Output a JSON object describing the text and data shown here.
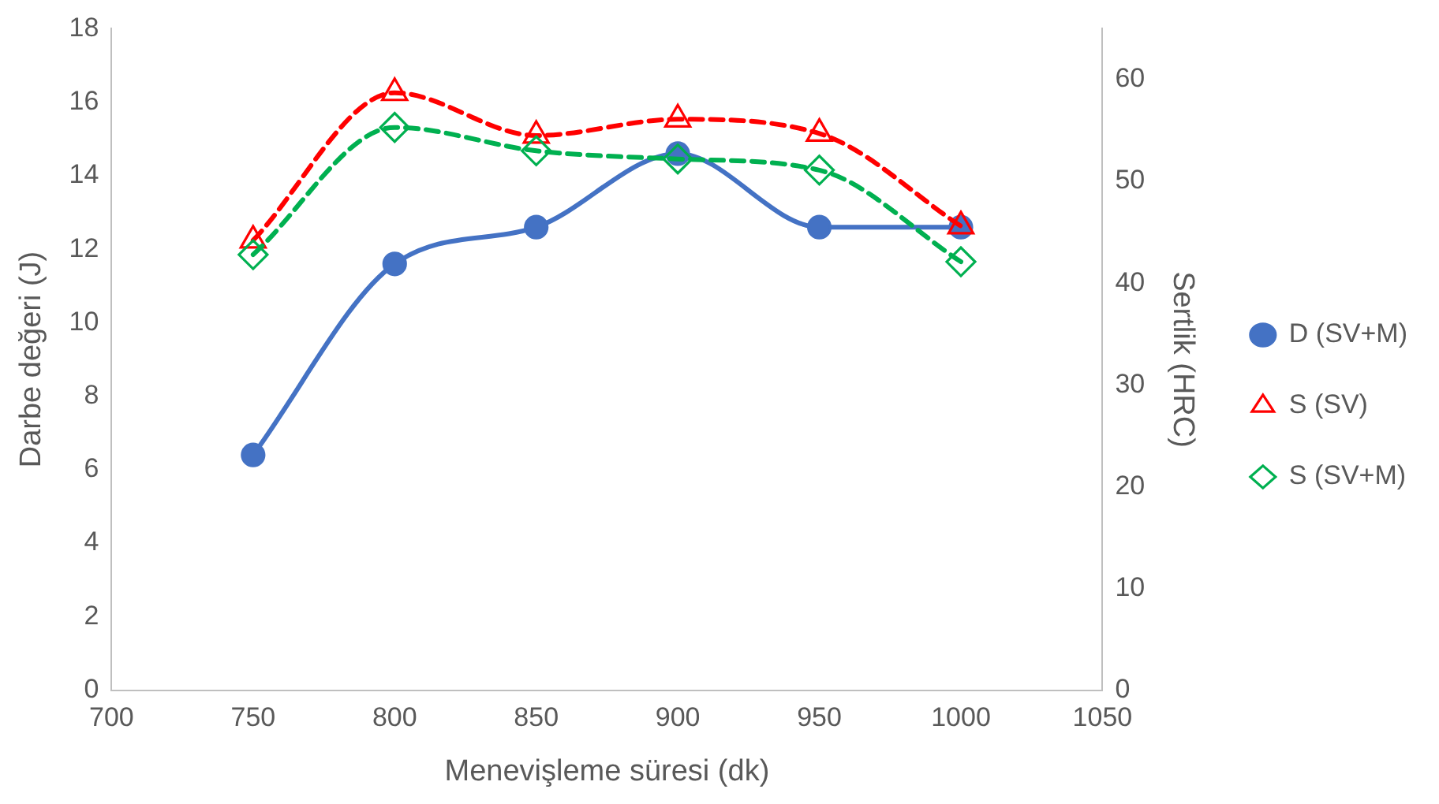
{
  "chart_data": {
    "type": "line",
    "xlabel": "Menevişleme süresi (dk)",
    "ylabel": "Darbe değeri (J)",
    "y2label": "Sertlik (HRC)",
    "x": [
      750,
      800,
      850,
      900,
      950,
      1000
    ],
    "xlim": [
      700,
      1050
    ],
    "xticks": [
      700,
      750,
      800,
      850,
      900,
      950,
      1000,
      1050
    ],
    "ylim": [
      0,
      18
    ],
    "yticks": [
      0,
      2,
      4,
      6,
      8,
      10,
      12,
      14,
      16,
      18
    ],
    "y2lim": [
      0,
      65
    ],
    "y2ticks": [
      0,
      10,
      20,
      30,
      40,
      50,
      60
    ],
    "grid": false,
    "legend": "right",
    "series": [
      {
        "name": "D (SV+M)",
        "color": "#4472c4",
        "marker": "circle",
        "line_style": "solid",
        "values": [
          6.4,
          11.6,
          12.6,
          14.6,
          12.6,
          12.6
        ]
      },
      {
        "name": "S (SV)",
        "color": "#ff0000",
        "marker": "triangle",
        "line_style": "dashed",
        "axis": "y2",
        "values": [
          44.2,
          58.7,
          54.5,
          56.1,
          54.7,
          45.6
        ]
      },
      {
        "name": "S (SV+M)",
        "color": "#00b050",
        "marker": "diamond",
        "line_style": "dashed",
        "axis": "y2",
        "values": [
          42.8,
          55.3,
          53.0,
          52.2,
          51.1,
          42.1
        ]
      }
    ]
  }
}
